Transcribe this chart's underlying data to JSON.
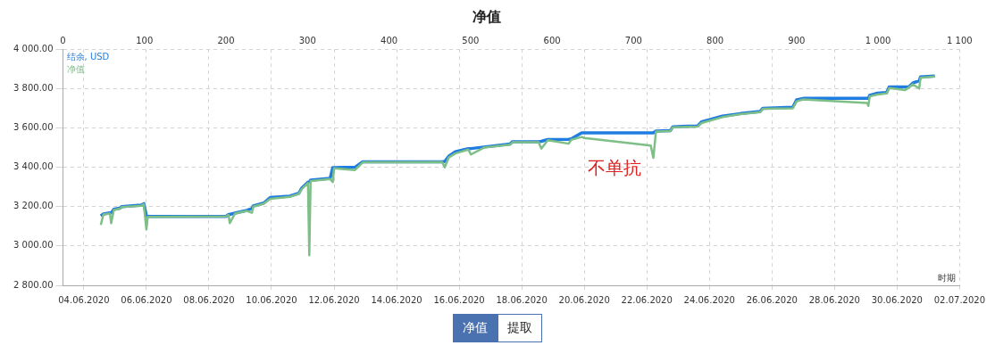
{
  "chart_data": {
    "type": "line",
    "title": "净值",
    "xlabel": "时期",
    "x": [
      "2020-06-04T13:00",
      "2020-06-04T15:00",
      "2020-06-04T20:00",
      "2020-06-04T21:00",
      "2020-06-04T23:00",
      "2020-06-05T04:00",
      "2020-06-05T05:00",
      "2020-06-05T20:00",
      "2020-06-05T22:00",
      "2020-06-06T00:00",
      "2020-06-06T01:00",
      "2020-06-08T13:00",
      "2020-06-08T15:00",
      "2020-06-08T16:00",
      "2020-06-08T20:00",
      "2020-06-09T05:00",
      "2020-06-09T09:00",
      "2020-06-09T10:00",
      "2020-06-09T18:00",
      "2020-06-09T23:00",
      "2020-06-10T14:00",
      "2020-06-10T21:00",
      "2020-06-10T23:00",
      "2020-06-11T04:00",
      "2020-06-11T05:00",
      "2020-06-11T06:00",
      "2020-06-11T21:00",
      "2020-06-11T23:00",
      "2020-06-12T00:00",
      "2020-06-12T16:00",
      "2020-06-12T22:00",
      "2020-06-15T11:00",
      "2020-06-15T13:00",
      "2020-06-15T16:00",
      "2020-06-15T21:00",
      "2020-06-16T07:00",
      "2020-06-16T09:00",
      "2020-06-16T19:00",
      "2020-06-17T15:00",
      "2020-06-17T17:00",
      "2020-06-18T13:00",
      "2020-06-18T15:00",
      "2020-06-18T20:00",
      "2020-06-19T12:00",
      "2020-06-19T14:00",
      "2020-06-19T22:00",
      "2020-06-20T00:00",
      "2020-06-22T03:00",
      "2020-06-22T05:00",
      "2020-06-22T07:00",
      "2020-06-22T18:00",
      "2020-06-22T20:00",
      "2020-06-23T15:00",
      "2020-06-23T18:00",
      "2020-06-24T10:00",
      "2020-06-25T00:00",
      "2020-06-25T15:00",
      "2020-06-25T17:00",
      "2020-06-26T16:00",
      "2020-06-26T19:00",
      "2020-06-27T00:00",
      "2020-06-29T01:00",
      "2020-06-29T02:00",
      "2020-06-29T03:00",
      "2020-06-29T09:00",
      "2020-06-29T16:00",
      "2020-06-29T18:00",
      "2020-06-30T06:00",
      "2020-06-30T09:00",
      "2020-06-30T12:00",
      "2020-06-30T17:00",
      "2020-06-30T18:00",
      "2020-07-01T05:00"
    ],
    "series": [
      {
        "name": "结余, USD",
        "color": "#1f7ce0",
        "values": [
          3153,
          3163,
          3168,
          3168,
          3186,
          3193,
          3200,
          3208,
          3215,
          3153,
          3150,
          3150,
          3160,
          3160,
          3167,
          3181,
          3190,
          3204,
          3218,
          3246,
          3253,
          3268,
          3293,
          3324,
          3326,
          3335,
          3344,
          3398,
          3398,
          3400,
          3428,
          3428,
          3430,
          3456,
          3479,
          3495,
          3495,
          3503,
          3518,
          3530,
          3530,
          3532,
          3541,
          3542,
          3544,
          3575,
          3575,
          3575,
          3575,
          3584,
          3586,
          3606,
          3610,
          3631,
          3660,
          3673,
          3684,
          3700,
          3705,
          3743,
          3750,
          3750,
          3750,
          3766,
          3777,
          3780,
          3808,
          3808,
          3808,
          3828,
          3840,
          3859,
          3864
        ]
      },
      {
        "name": "净值",
        "color": "#7dbf86",
        "values": [
          3107,
          3160,
          3165,
          3116,
          3183,
          3190,
          3198,
          3205,
          3212,
          3084,
          3148,
          3150,
          3158,
          3116,
          3165,
          3178,
          3169,
          3200,
          3215,
          3240,
          3250,
          3265,
          3288,
          3320,
          2953,
          3330,
          3340,
          3325,
          3395,
          3386,
          3425,
          3426,
          3400,
          3450,
          3470,
          3490,
          3465,
          3500,
          3515,
          3527,
          3527,
          3495,
          3538,
          3520,
          3540,
          3554,
          3549,
          3510,
          3448,
          3582,
          3584,
          3603,
          3607,
          3625,
          3655,
          3670,
          3680,
          3697,
          3700,
          3735,
          3745,
          3727,
          3712,
          3760,
          3770,
          3775,
          3803,
          3792,
          3805,
          3822,
          3800,
          3855,
          3862
        ]
      }
    ],
    "xlim": [
      "2020-06-03T08:00",
      "2020-07-02T00:00"
    ],
    "xticks": [
      {
        "value": "2020-06-04",
        "label": "04.06.2020"
      },
      {
        "value": "2020-06-06",
        "label": "06.06.2020"
      },
      {
        "value": "2020-06-08",
        "label": "08.06.2020"
      },
      {
        "value": "2020-06-10",
        "label": "10.06.2020"
      },
      {
        "value": "2020-06-12",
        "label": "12.06.2020"
      },
      {
        "value": "2020-06-14",
        "label": "14.06.2020"
      },
      {
        "value": "2020-06-16",
        "label": "16.06.2020"
      },
      {
        "value": "2020-06-18",
        "label": "18.06.2020"
      },
      {
        "value": "2020-06-20",
        "label": "20.06.2020"
      },
      {
        "value": "2020-06-22",
        "label": "22.06.2020"
      },
      {
        "value": "2020-06-24",
        "label": "24.06.2020"
      },
      {
        "value": "2020-06-26",
        "label": "26.06.2020"
      },
      {
        "value": "2020-06-28",
        "label": "28.06.2020"
      },
      {
        "value": "2020-06-30",
        "label": "30.06.2020"
      },
      {
        "value": "2020-07-02",
        "label": "02.07.2020"
      }
    ],
    "ylim": [
      2800,
      4000
    ],
    "yticks": [
      {
        "value": 2800,
        "label": "2 800.00"
      },
      {
        "value": 3000,
        "label": "3 000.00"
      },
      {
        "value": 3200,
        "label": "3 200.00"
      },
      {
        "value": 3400,
        "label": "3 400.00"
      },
      {
        "value": 3600,
        "label": "3 600.00"
      },
      {
        "value": 3800,
        "label": "3 800.00"
      },
      {
        "value": 4000,
        "label": "4 000.00"
      }
    ],
    "x2lim": [
      0,
      1100
    ],
    "x2ticks": [
      0,
      100,
      200,
      300,
      400,
      500,
      600,
      700,
      800,
      900,
      {
        "value": 1000,
        "label": "1 000"
      },
      {
        "value": 1100,
        "label": "1 100"
      }
    ],
    "annotations": [
      "不单抗",
      "净值",
      "提取"
    ],
    "grid": true,
    "legend": "top left",
    "marker": "none",
    "line_style": "solid"
  }
}
